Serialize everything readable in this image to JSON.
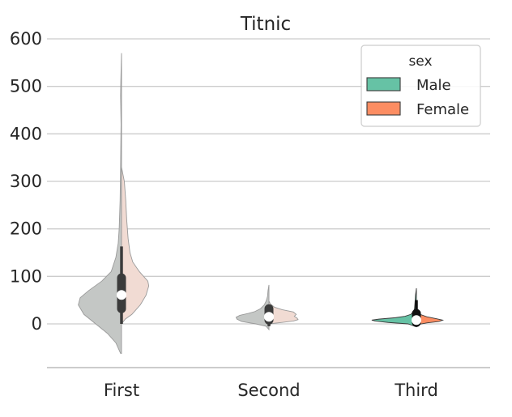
{
  "chart_data": {
    "type": "violin",
    "title": "Titnic",
    "xlabel": "",
    "ylabel": "",
    "categories": [
      "First",
      "Second",
      "Third"
    ],
    "yticks": [
      0,
      100,
      200,
      300,
      400,
      500,
      600
    ],
    "ylim": [
      -92,
      610
    ],
    "grid": "horizontal",
    "split": true,
    "legend": {
      "title": "sex",
      "placement": "top-right",
      "entries": [
        {
          "name": "Male",
          "color": "#66c2a5"
        },
        {
          "name": "Female",
          "color": "#fc8d62"
        }
      ]
    },
    "series": [
      {
        "name": "Male",
        "side": "left",
        "violins": [
          {
            "category": "First",
            "profile": [
              [
                -62,
                2
              ],
              [
                -40,
                12
              ],
              [
                -20,
                30
              ],
              [
                0,
                55
              ],
              [
                20,
                80
              ],
              [
                40,
                92
              ],
              [
                55,
                88
              ],
              [
                70,
                70
              ],
              [
                90,
                42
              ],
              [
                110,
                22
              ],
              [
                140,
                12
              ],
              [
                170,
                7
              ],
              [
                200,
                5
              ],
              [
                260,
                3
              ],
              [
                330,
                2
              ],
              [
                420,
                1
              ],
              [
                480,
                2
              ],
              [
                510,
                1.5
              ],
              [
                570,
                0
              ]
            ]
          },
          {
            "category": "Second",
            "profile": [
              [
                -12,
                0
              ],
              [
                -5,
                6
              ],
              [
                0,
                28
              ],
              [
                5,
                58
              ],
              [
                10,
                68
              ],
              [
                14,
                70
              ],
              [
                18,
                62
              ],
              [
                22,
                44
              ],
              [
                26,
                30
              ],
              [
                32,
                18
              ],
              [
                40,
                10
              ],
              [
                48,
                6
              ],
              [
                58,
                3
              ],
              [
                70,
                2
              ],
              [
                82,
                0
              ]
            ]
          },
          {
            "category": "Third",
            "profile": [
              [
                -6,
                0
              ],
              [
                0,
                18
              ],
              [
                3,
                60
              ],
              [
                6,
                88
              ],
              [
                8,
                95
              ],
              [
                10,
                80
              ],
              [
                13,
                45
              ],
              [
                16,
                24
              ],
              [
                20,
                12
              ],
              [
                26,
                6
              ],
              [
                32,
                4
              ],
              [
                45,
                3
              ],
              [
                60,
                2
              ],
              [
                75,
                0
              ]
            ]
          }
        ]
      },
      {
        "name": "Female",
        "side": "right",
        "violins": [
          {
            "category": "First",
            "profile": [
              [
                0,
                0
              ],
              [
                10,
                8
              ],
              [
                20,
                22
              ],
              [
                40,
                40
              ],
              [
                60,
                52
              ],
              [
                80,
                58
              ],
              [
                90,
                56
              ],
              [
                110,
                38
              ],
              [
                130,
                24
              ],
              [
                150,
                18
              ],
              [
                180,
                14
              ],
              [
                220,
                11
              ],
              [
                260,
                9
              ],
              [
                300,
                6
              ],
              [
                330,
                0
              ]
            ]
          },
          {
            "category": "Second",
            "profile": [
              [
                0,
                0
              ],
              [
                3,
                28
              ],
              [
                6,
                52
              ],
              [
                9,
                62
              ],
              [
                12,
                60
              ],
              [
                16,
                54
              ],
              [
                20,
                58
              ],
              [
                25,
                52
              ],
              [
                30,
                28
              ],
              [
                35,
                12
              ],
              [
                42,
                3
              ],
              [
                48,
                0
              ]
            ]
          },
          {
            "category": "Third",
            "profile": [
              [
                -2,
                0
              ],
              [
                2,
                22
              ],
              [
                5,
                48
              ],
              [
                8,
                56
              ],
              [
                11,
                42
              ],
              [
                15,
                22
              ],
              [
                20,
                8
              ],
              [
                26,
                2
              ],
              [
                30,
                0
              ]
            ]
          }
        ]
      }
    ],
    "boxes": [
      {
        "category": "First",
        "whisker_low": 0,
        "q1": 32,
        "median": 61,
        "q3": 97,
        "whisker_high": 163
      },
      {
        "category": "Second",
        "whisker_low": -5,
        "q1": 8,
        "median": 15,
        "q3": 32,
        "whisker_high": 40
      },
      {
        "category": "Third",
        "whisker_low": -5,
        "q1": 3,
        "median": 8,
        "q3": 22,
        "whisker_high": 50
      }
    ],
    "muted_categories": [
      "First",
      "Second"
    ]
  }
}
